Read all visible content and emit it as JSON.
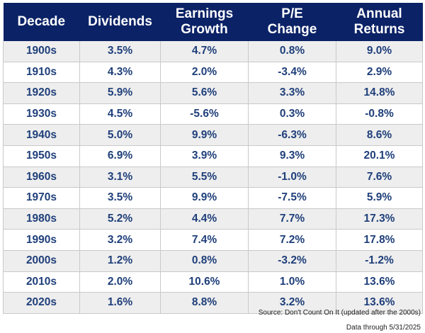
{
  "chart_data": {
    "type": "table",
    "columns": [
      [
        "Decade"
      ],
      [
        "Dividends"
      ],
      [
        "Earnings",
        "Growth"
      ],
      [
        "P/E",
        "Change"
      ],
      [
        "Annual",
        "Returns"
      ]
    ],
    "rows": [
      [
        "1900s",
        "3.5%",
        "4.7%",
        "0.8%",
        "9.0%"
      ],
      [
        "1910s",
        "4.3%",
        "2.0%",
        "-3.4%",
        "2.9%"
      ],
      [
        "1920s",
        "5.9%",
        "5.6%",
        "3.3%",
        "14.8%"
      ],
      [
        "1930s",
        "4.5%",
        "-5.6%",
        "0.3%",
        "-0.8%"
      ],
      [
        "1940s",
        "5.0%",
        "9.9%",
        "-6.3%",
        "8.6%"
      ],
      [
        "1950s",
        "6.9%",
        "3.9%",
        "9.3%",
        "20.1%"
      ],
      [
        "1960s",
        "3.1%",
        "5.5%",
        "-1.0%",
        "7.6%"
      ],
      [
        "1970s",
        "3.5%",
        "9.9%",
        "-7.5%",
        "5.9%"
      ],
      [
        "1980s",
        "5.2%",
        "4.4%",
        "7.7%",
        "17.3%"
      ],
      [
        "1990s",
        "3.2%",
        "7.4%",
        "7.2%",
        "17.8%"
      ],
      [
        "2000s",
        "1.2%",
        "0.8%",
        "-3.2%",
        "-1.2%"
      ],
      [
        "2010s",
        "2.0%",
        "10.6%",
        "1.0%",
        "13.6%"
      ],
      [
        "2020s",
        "1.6%",
        "8.8%",
        "3.2%",
        "13.6%"
      ]
    ]
  },
  "footer": {
    "source": "Source: Don't Count On It (updated after the 2000s)",
    "data_through": "Data through 5/31/2025"
  },
  "colors": {
    "header_bg": "#0b2266",
    "header_text": "#ffffff",
    "cell_text": "#1f3f7a",
    "stripe": "#eeeeee"
  }
}
